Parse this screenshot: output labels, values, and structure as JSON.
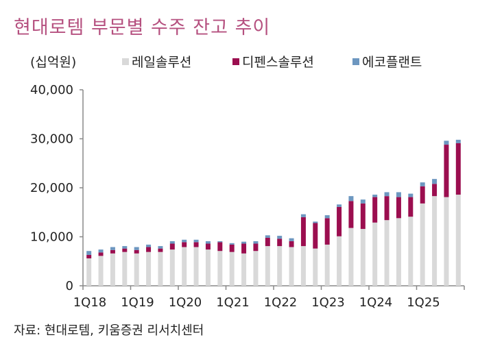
{
  "title": "현대로템 부문별 수주 잔고 추이",
  "unit": "(십억원)",
  "source": "자료: 현대로템, 키움증권 리서치센터",
  "chart_data": {
    "type": "bar",
    "stacked": true,
    "ylim": [
      0,
      40000
    ],
    "yticks": [
      0,
      10000,
      20000,
      30000,
      40000
    ],
    "ytick_labels": [
      "0",
      "10,000",
      "20,000",
      "30,000",
      "40,000"
    ],
    "xtick_labels": [
      "1Q18",
      "1Q19",
      "1Q20",
      "1Q21",
      "1Q22",
      "1Q23",
      "1Q24",
      "1Q25"
    ],
    "legend_position": "top",
    "grid": false,
    "series": [
      {
        "name": "레일솔루션",
        "color": "#d9d9d9",
        "values": [
          5600,
          6100,
          6600,
          6900,
          6600,
          6900,
          6900,
          7400,
          7900,
          7900,
          7400,
          7100,
          6900,
          6600,
          7100,
          8100,
          8100,
          7900,
          8100,
          7600,
          8400,
          10100,
          11800,
          11600,
          12900,
          13400,
          13800,
          14100,
          16800,
          18300,
          18100,
          18600
        ]
      },
      {
        "name": "디펜스솔루션",
        "color": "#9b0e4f",
        "values": [
          700,
          700,
          700,
          700,
          700,
          1000,
          700,
          1200,
          1000,
          1000,
          1200,
          1800,
          1500,
          2000,
          1500,
          1700,
          1500,
          1200,
          5900,
          5200,
          5400,
          6000,
          5500,
          5200,
          5200,
          4900,
          4300,
          4000,
          3500,
          2500,
          10700,
          10500
        ]
      },
      {
        "name": "에코플랜트",
        "color": "#6d97c0",
        "values": [
          800,
          600,
          600,
          500,
          600,
          500,
          500,
          500,
          500,
          500,
          500,
          200,
          300,
          400,
          500,
          500,
          600,
          600,
          600,
          300,
          600,
          500,
          1000,
          800,
          500,
          800,
          1000,
          700,
          800,
          1000,
          800,
          700
        ]
      }
    ]
  }
}
